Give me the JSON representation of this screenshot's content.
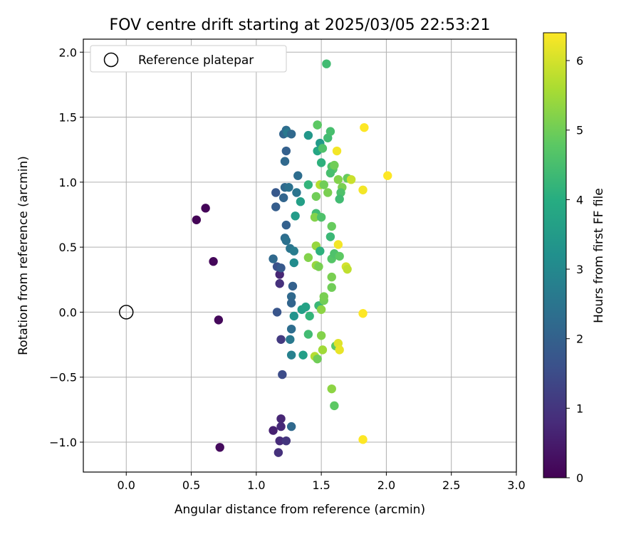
{
  "chart_data": {
    "type": "scatter",
    "title": "FOV centre drift starting at 2025/03/05 22:53:21",
    "xlabel": "Angular distance from reference (arcmin)",
    "ylabel": "Rotation from reference (arcmin)",
    "xlim": [
      -0.33,
      3.0
    ],
    "ylim": [
      -1.23,
      2.1
    ],
    "xticks": [
      0.0,
      0.5,
      1.0,
      1.5,
      2.0,
      2.5,
      3.0
    ],
    "xtick_labels": [
      "0.0",
      "0.5",
      "1.0",
      "1.5",
      "2.0",
      "2.5",
      "3.0"
    ],
    "yticks": [
      -1.0,
      -0.5,
      0.0,
      0.5,
      1.0,
      1.5,
      2.0
    ],
    "ytick_labels": [
      "−1.0",
      "−0.5",
      "0.0",
      "0.5",
      "1.0",
      "1.5",
      "2.0"
    ],
    "grid": true,
    "legend": {
      "position": "top-left",
      "entries": [
        "Reference platepar"
      ]
    },
    "reference_point": {
      "x": 0.0,
      "y": 0.0
    },
    "colorbar": {
      "label": "Hours from first FF file",
      "colormap": "viridis",
      "range": [
        0,
        6.4
      ],
      "ticks": [
        0,
        1,
        2,
        3,
        4,
        5,
        6
      ],
      "tick_labels": [
        "0",
        "1",
        "2",
        "3",
        "4",
        "5",
        "6"
      ]
    },
    "colormap_stops": [
      "#440154",
      "#472c7a",
      "#3b518b",
      "#2c718e",
      "#21908d",
      "#27ad81",
      "#5cc863",
      "#aadc32",
      "#fde725"
    ],
    "points": [
      {
        "x": 0.54,
        "y": 0.71,
        "t": 0.05
      },
      {
        "x": 0.61,
        "y": 0.8,
        "t": 0.08
      },
      {
        "x": 0.67,
        "y": 0.39,
        "t": 0.12
      },
      {
        "x": 0.71,
        "y": -0.06,
        "t": 0.15
      },
      {
        "x": 0.72,
        "y": -1.04,
        "t": 0.18
      },
      {
        "x": 1.13,
        "y": -0.91,
        "t": 0.6
      },
      {
        "x": 1.19,
        "y": -0.82,
        "t": 0.7
      },
      {
        "x": 1.19,
        "y": -0.88,
        "t": 0.75
      },
      {
        "x": 1.18,
        "y": -0.99,
        "t": 0.8
      },
      {
        "x": 1.17,
        "y": -1.08,
        "t": 0.9
      },
      {
        "x": 1.23,
        "y": -0.99,
        "t": 1.0
      },
      {
        "x": 1.18,
        "y": 0.29,
        "t": 0.7
      },
      {
        "x": 1.18,
        "y": 0.22,
        "t": 0.9
      },
      {
        "x": 1.19,
        "y": -0.21,
        "t": 1.1
      },
      {
        "x": 1.2,
        "y": -0.48,
        "t": 1.5
      },
      {
        "x": 1.16,
        "y": 0.35,
        "t": 1.6
      },
      {
        "x": 1.16,
        "y": 0.0,
        "t": 1.7
      },
      {
        "x": 1.19,
        "y": 0.34,
        "t": 1.8
      },
      {
        "x": 1.28,
        "y": 0.2,
        "t": 2.0
      },
      {
        "x": 1.27,
        "y": 0.12,
        "t": 2.2
      },
      {
        "x": 1.27,
        "y": 0.07,
        "t": 2.1
      },
      {
        "x": 1.27,
        "y": -0.13,
        "t": 2.3
      },
      {
        "x": 1.26,
        "y": -0.21,
        "t": 2.6
      },
      {
        "x": 1.27,
        "y": -0.33,
        "t": 2.8
      },
      {
        "x": 1.27,
        "y": -0.88,
        "t": 2.2
      },
      {
        "x": 1.29,
        "y": -0.03,
        "t": 3.3
      },
      {
        "x": 1.35,
        "y": 0.02,
        "t": 3.6
      },
      {
        "x": 1.38,
        "y": 0.04,
        "t": 3.7
      },
      {
        "x": 1.36,
        "y": -0.33,
        "t": 3.6
      },
      {
        "x": 1.41,
        "y": -0.03,
        "t": 4.2
      },
      {
        "x": 1.4,
        "y": -0.17,
        "t": 4.4
      },
      {
        "x": 1.48,
        "y": 0.05,
        "t": 4.3
      },
      {
        "x": 1.52,
        "y": 0.09,
        "t": 5.0
      },
      {
        "x": 1.52,
        "y": 0.12,
        "t": 5.1
      },
      {
        "x": 1.5,
        "y": 0.02,
        "t": 5.3
      },
      {
        "x": 1.5,
        "y": -0.18,
        "t": 5.2
      },
      {
        "x": 1.51,
        "y": -0.29,
        "t": 5.5
      },
      {
        "x": 1.45,
        "y": -0.34,
        "t": 5.7
      },
      {
        "x": 1.47,
        "y": -0.36,
        "t": 5.0
      },
      {
        "x": 1.61,
        "y": -0.26,
        "t": 4.8
      },
      {
        "x": 1.63,
        "y": -0.24,
        "t": 6.1
      },
      {
        "x": 1.64,
        "y": -0.29,
        "t": 6.2
      },
      {
        "x": 1.82,
        "y": -0.01,
        "t": 6.4
      },
      {
        "x": 1.58,
        "y": -0.59,
        "t": 5.3
      },
      {
        "x": 1.6,
        "y": -0.72,
        "t": 4.8
      },
      {
        "x": 1.82,
        "y": -0.98,
        "t": 6.4
      },
      {
        "x": 1.13,
        "y": 0.41,
        "t": 2.2
      },
      {
        "x": 1.22,
        "y": 0.57,
        "t": 2.3
      },
      {
        "x": 1.23,
        "y": 0.55,
        "t": 2.4
      },
      {
        "x": 1.26,
        "y": 0.49,
        "t": 2.5
      },
      {
        "x": 1.29,
        "y": 0.47,
        "t": 2.7
      },
      {
        "x": 1.29,
        "y": 0.38,
        "t": 3.1
      },
      {
        "x": 1.23,
        "y": 0.67,
        "t": 2.0
      },
      {
        "x": 1.15,
        "y": 0.81,
        "t": 1.9
      },
      {
        "x": 1.15,
        "y": 0.92,
        "t": 1.8
      },
      {
        "x": 1.21,
        "y": 0.88,
        "t": 2.1
      },
      {
        "x": 1.22,
        "y": 0.96,
        "t": 2.2
      },
      {
        "x": 1.25,
        "y": 0.96,
        "t": 2.4
      },
      {
        "x": 1.31,
        "y": 0.92,
        "t": 2.5
      },
      {
        "x": 1.3,
        "y": 0.74,
        "t": 3.5
      },
      {
        "x": 1.34,
        "y": 0.85,
        "t": 3.6
      },
      {
        "x": 1.32,
        "y": 1.05,
        "t": 2.3
      },
      {
        "x": 1.22,
        "y": 1.16,
        "t": 2.2
      },
      {
        "x": 1.23,
        "y": 1.24,
        "t": 2.0
      },
      {
        "x": 1.21,
        "y": 1.37,
        "t": 2.1
      },
      {
        "x": 1.23,
        "y": 1.4,
        "t": 2.3
      },
      {
        "x": 1.24,
        "y": 1.38,
        "t": 2.6
      },
      {
        "x": 1.27,
        "y": 1.37,
        "t": 2.2
      },
      {
        "x": 1.4,
        "y": 1.36,
        "t": 3.4
      },
      {
        "x": 1.47,
        "y": 1.44,
        "t": 4.2
      },
      {
        "x": 1.47,
        "y": 1.44,
        "t": 4.8
      },
      {
        "x": 1.47,
        "y": 1.24,
        "t": 3.8
      },
      {
        "x": 1.49,
        "y": 1.3,
        "t": 3.5
      },
      {
        "x": 1.51,
        "y": 1.26,
        "t": 4.6
      },
      {
        "x": 1.55,
        "y": 1.34,
        "t": 4.4
      },
      {
        "x": 1.57,
        "y": 1.39,
        "t": 4.5
      },
      {
        "x": 1.54,
        "y": 1.91,
        "t": 4.4
      },
      {
        "x": 1.62,
        "y": 1.24,
        "t": 6.3
      },
      {
        "x": 1.83,
        "y": 1.42,
        "t": 6.4
      },
      {
        "x": 2.01,
        "y": 1.05,
        "t": 6.4
      },
      {
        "x": 1.82,
        "y": 0.94,
        "t": 6.3
      },
      {
        "x": 1.4,
        "y": 0.98,
        "t": 4.2
      },
      {
        "x": 1.5,
        "y": 1.15,
        "t": 4.1
      },
      {
        "x": 1.58,
        "y": 1.12,
        "t": 4.6
      },
      {
        "x": 1.59,
        "y": 1.1,
        "t": 4.7
      },
      {
        "x": 1.57,
        "y": 1.07,
        "t": 4.5
      },
      {
        "x": 1.6,
        "y": 1.13,
        "t": 5.0
      },
      {
        "x": 1.63,
        "y": 1.02,
        "t": 5.2
      },
      {
        "x": 1.66,
        "y": 0.96,
        "t": 5.1
      },
      {
        "x": 1.65,
        "y": 0.92,
        "t": 4.6
      },
      {
        "x": 1.64,
        "y": 0.87,
        "t": 4.4
      },
      {
        "x": 1.55,
        "y": 0.92,
        "t": 5.1
      },
      {
        "x": 1.49,
        "y": 0.98,
        "t": 5.7
      },
      {
        "x": 1.52,
        "y": 0.98,
        "t": 5.0
      },
      {
        "x": 1.7,
        "y": 1.03,
        "t": 4.9
      },
      {
        "x": 1.73,
        "y": 1.02,
        "t": 5.9
      },
      {
        "x": 1.46,
        "y": 0.89,
        "t": 5.0
      },
      {
        "x": 1.46,
        "y": 0.76,
        "t": 4.4
      },
      {
        "x": 1.45,
        "y": 0.73,
        "t": 5.2
      },
      {
        "x": 1.5,
        "y": 0.73,
        "t": 4.6
      },
      {
        "x": 1.58,
        "y": 0.66,
        "t": 4.9
      },
      {
        "x": 1.57,
        "y": 0.58,
        "t": 4.3
      },
      {
        "x": 1.63,
        "y": 0.52,
        "t": 6.3
      },
      {
        "x": 1.46,
        "y": 0.51,
        "t": 5.4
      },
      {
        "x": 1.49,
        "y": 0.47,
        "t": 4.1
      },
      {
        "x": 1.4,
        "y": 0.42,
        "t": 5.2
      },
      {
        "x": 1.58,
        "y": 0.41,
        "t": 4.7
      },
      {
        "x": 1.6,
        "y": 0.45,
        "t": 4.6
      },
      {
        "x": 1.64,
        "y": 0.43,
        "t": 4.8
      },
      {
        "x": 1.46,
        "y": 0.36,
        "t": 5.4
      },
      {
        "x": 1.48,
        "y": 0.35,
        "t": 5.1
      },
      {
        "x": 1.69,
        "y": 0.35,
        "t": 6.0
      },
      {
        "x": 1.7,
        "y": 0.33,
        "t": 5.8
      },
      {
        "x": 1.58,
        "y": 0.27,
        "t": 5.1
      },
      {
        "x": 1.58,
        "y": 0.19,
        "t": 5.0
      }
    ]
  }
}
